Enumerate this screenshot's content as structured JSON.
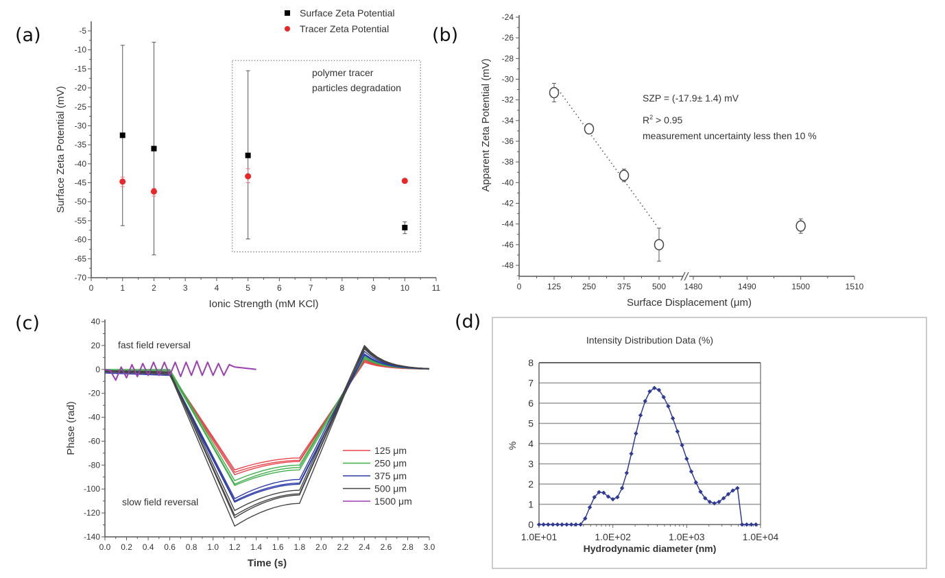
{
  "panels": {
    "a": {
      "label": "(a)"
    },
    "b": {
      "label": "(b)"
    },
    "c": {
      "label": "(c)"
    },
    "d": {
      "label": "(d)"
    }
  },
  "chart_data": [
    {
      "id": "a",
      "type": "scatter",
      "title": "",
      "xlabel": "Ionic Strength (mM KCl)",
      "ylabel": "Surface Zeta Potential (mV)",
      "xlim": [
        0,
        11
      ],
      "ylim": [
        -70,
        -2.5
      ],
      "xticks": [
        0,
        1,
        2,
        3,
        4,
        5,
        6,
        7,
        8,
        9,
        10,
        11
      ],
      "yticks": [
        -5,
        -10,
        -15,
        -20,
        -25,
        -30,
        -35,
        -40,
        -45,
        -50,
        -55,
        -60,
        -65,
        -70
      ],
      "legend": {
        "position": "top-right",
        "entries": [
          "Surface Zeta Potential",
          "Tracer Zeta Potential"
        ]
      },
      "series": [
        {
          "name": "Surface Zeta Potential",
          "color": "#000000",
          "marker": "square",
          "x": [
            1,
            2,
            5,
            10
          ],
          "y": [
            -32.5,
            -36.0,
            -37.8,
            -56.8
          ],
          "err_low": [
            -56.3,
            -64.0,
            -59.8,
            -58.4
          ],
          "err_high": [
            -8.8,
            -8.0,
            -15.5,
            -55.3
          ]
        },
        {
          "name": "Tracer Zeta Potential",
          "color": "#e8272a",
          "marker": "circle",
          "x": [
            1,
            2,
            5,
            10
          ],
          "y": [
            -44.7,
            -47.3,
            -43.3,
            -44.5
          ],
          "err_low": [
            -46.0,
            -48.5,
            -45.0,
            -45.0
          ],
          "err_high": [
            -43.5,
            -46.5,
            -41.3,
            -44.0
          ]
        }
      ],
      "annotations": [
        {
          "text_lines": [
            "polymer tracer",
            "particles degradation"
          ],
          "box": "dotted",
          "x_range": [
            4.5,
            10.5
          ],
          "y_range": [
            -63.2,
            -12.8
          ]
        }
      ]
    },
    {
      "id": "b",
      "type": "scatter",
      "xlabel": "Surface Displacement (μm)",
      "ylabel": "Apparent Zeta Potential (mV)",
      "ylim": [
        -49,
        -24
      ],
      "yticks": [
        -24,
        -26,
        -28,
        -30,
        -32,
        -34,
        -36,
        -38,
        -40,
        -42,
        -44,
        -46,
        -48
      ],
      "xticks": [
        "0",
        "125",
        "250",
        "375",
        "500",
        "1480",
        "1490",
        "1500",
        "1510"
      ],
      "x_axis_break": [
        500,
        1480
      ],
      "series": [
        {
          "name": "Apparent Zeta Potential",
          "marker": "open-circle",
          "color": "#333333",
          "x": [
            125,
            250,
            375,
            500,
            1500
          ],
          "y": [
            -31.3,
            -34.8,
            -39.3,
            -46.0,
            -44.2
          ],
          "err": [
            0.9,
            0.3,
            0.6,
            1.6,
            0.7
          ]
        }
      ],
      "fit_line": {
        "style": "dotted",
        "from": [
          125,
          -31.0
        ],
        "to": [
          500,
          -44.2
        ]
      },
      "annotations": [
        "SZP = (-17.9± 1.4) mV",
        "R² > 0.95",
        "measurement uncertainty less then 10 %"
      ],
      "annotation_parts": {
        "szp": "SZP = (-17.9± 1.4) mV",
        "r": "R",
        "r_sup": "2",
        "r_rest": " > 0.95",
        "uncert": "measurement uncertainty less then 10 %"
      }
    },
    {
      "id": "c",
      "type": "line",
      "xlabel": "Time (s)",
      "ylabel": "Phase (rad)",
      "xlim": [
        0,
        3.0
      ],
      "ylim": [
        -140,
        40
      ],
      "xticks": [
        "0.0",
        "0.2",
        "0.4",
        "0.6",
        "0.8",
        "1.0",
        "1.2",
        "1.4",
        "1.6",
        "1.8",
        "2.0",
        "2.2",
        "2.4",
        "2.6",
        "2.8",
        "3.0"
      ],
      "yticks": [
        40,
        20,
        0,
        -20,
        -40,
        -60,
        -80,
        -100,
        -120,
        -140
      ],
      "annotations": [
        "fast field reversal",
        "slow field reversal"
      ],
      "legend": {
        "position": "right-middle",
        "entries": [
          "125 μm",
          "250 μm",
          "375 μm",
          "500 μm",
          "1500 μm"
        ]
      },
      "series": [
        {
          "name": "125 μm",
          "color": "#e8424a",
          "runs": [
            {
              "x": [
                0,
                0.6,
                1.2,
                1.8,
                2.4,
                3.0
              ],
              "y": [
                -1,
                -2,
                -84,
                -74,
                6,
                0
              ]
            },
            {
              "x": [
                0,
                0.6,
                1.2,
                1.8,
                2.4,
                3.0
              ],
              "y": [
                -1,
                -3,
                -88,
                -77,
                8,
                0
              ]
            },
            {
              "x": [
                0,
                0.6,
                1.2,
                1.8,
                2.4,
                3.0
              ],
              "y": [
                -1,
                -2,
                -86,
                -76,
                7,
                0
              ]
            }
          ]
        },
        {
          "name": "250 μm",
          "color": "#3fae49",
          "runs": [
            {
              "x": [
                0,
                0.6,
                1.2,
                1.8,
                2.4,
                3.0
              ],
              "y": [
                0,
                0,
                -93,
                -80,
                10,
                0
              ]
            },
            {
              "x": [
                0,
                0.6,
                1.2,
                1.8,
                2.4,
                3.0
              ],
              "y": [
                -1,
                -1,
                -96,
                -82,
                11,
                0
              ]
            },
            {
              "x": [
                0,
                0.6,
                1.2,
                1.8,
                2.4,
                3.0
              ],
              "y": [
                -1,
                -2,
                -97,
                -84,
                9,
                0
              ]
            }
          ]
        },
        {
          "name": "375 μm",
          "color": "#2b3aa8",
          "runs": [
            {
              "x": [
                0,
                0.6,
                1.2,
                1.8,
                2.4,
                3.0
              ],
              "y": [
                -2,
                -3,
                -108,
                -92,
                15,
                0
              ]
            },
            {
              "x": [
                0,
                0.6,
                1.2,
                1.8,
                2.4,
                3.0
              ],
              "y": [
                -2,
                -4,
                -110,
                -95,
                13,
                0
              ]
            },
            {
              "x": [
                0,
                0.6,
                1.2,
                1.8,
                2.4,
                3.0
              ],
              "y": [
                -3,
                -5,
                -111,
                -96,
                12,
                0
              ]
            }
          ]
        },
        {
          "name": "500 μm",
          "color": "#444444",
          "runs": [
            {
              "x": [
                0,
                0.6,
                1.2,
                1.8,
                2.4,
                3.0
              ],
              "y": [
                -1,
                -2,
                -118,
                -101,
                20,
                0
              ]
            },
            {
              "x": [
                0,
                0.6,
                1.2,
                1.8,
                2.4,
                3.0
              ],
              "y": [
                -1,
                -3,
                -122,
                -104,
                18,
                0
              ]
            },
            {
              "x": [
                0,
                0.6,
                1.2,
                1.8,
                2.4,
                3.0
              ],
              "y": [
                -2,
                -3,
                -124,
                -105,
                17,
                0
              ]
            },
            {
              "x": [
                0,
                0.6,
                1.2,
                1.8,
                2.4,
                3.0
              ],
              "y": [
                -2,
                -4,
                -131,
                -112,
                19,
                0
              ]
            }
          ]
        },
        {
          "name": "1500 μm",
          "color": "#9b3fb0",
          "runs": [
            {
              "x": [
                0,
                0.05,
                0.1,
                0.15,
                0.2,
                0.25,
                0.3,
                0.35,
                0.4,
                0.45,
                0.5,
                0.55,
                0.6,
                0.65,
                0.7,
                0.75,
                0.8,
                0.85,
                0.9,
                0.95,
                1.0,
                1.05,
                1.1,
                1.15,
                1.2,
                1.3,
                1.4
              ],
              "y": [
                0,
                -1,
                -9,
                2,
                -7,
                4,
                -6,
                5,
                -5,
                6,
                -5,
                6,
                -5,
                6,
                -6,
                6,
                -5,
                7,
                -5,
                6,
                -5,
                5,
                -5,
                4,
                2,
                1,
                0
              ]
            }
          ]
        }
      ]
    },
    {
      "id": "d",
      "type": "line",
      "title": "Intensity Distribution Data (%)",
      "xlabel": "Hydrodynamic diameter (nm)",
      "ylabel": "%",
      "xscale": "log",
      "xlim": [
        10,
        10000
      ],
      "ylim": [
        0,
        8
      ],
      "xticks": [
        "1.0E+01",
        "1.0E+02",
        "1.0E+03",
        "1.0E+04"
      ],
      "yticks": [
        0,
        1,
        2,
        3,
        4,
        5,
        6,
        7,
        8
      ],
      "grid": "horizontal",
      "series": [
        {
          "name": "Intensity",
          "color": "#2e3a96",
          "marker": "diamond",
          "x": [
            10,
            11.5,
            13.3,
            15.4,
            17.8,
            20.5,
            23.7,
            27.4,
            31.6,
            36.5,
            42.2,
            48.7,
            56.2,
            65.0,
            75.0,
            86.6,
            100,
            115.5,
            133.4,
            154,
            177.8,
            205.4,
            237.1,
            273.8,
            316.2,
            365.2,
            421.7,
            487.0,
            562.3,
            649.4,
            749.9,
            866,
            1000,
            1155,
            1334,
            1540,
            1778,
            2054,
            2371,
            2738,
            3162,
            3652,
            4217,
            4870,
            5623,
            6494,
            7499,
            8660
          ],
          "y": [
            0,
            0,
            0,
            0,
            0,
            0,
            0,
            0,
            0,
            0,
            0.3,
            0.85,
            1.35,
            1.6,
            1.57,
            1.38,
            1.25,
            1.35,
            1.8,
            2.55,
            3.5,
            4.5,
            5.4,
            6.1,
            6.58,
            6.75,
            6.65,
            6.3,
            5.85,
            5.25,
            4.6,
            3.92,
            3.25,
            2.62,
            2.08,
            1.62,
            1.3,
            1.12,
            1.05,
            1.12,
            1.3,
            1.5,
            1.68,
            1.8,
            0,
            0,
            0,
            0
          ]
        }
      ]
    }
  ]
}
